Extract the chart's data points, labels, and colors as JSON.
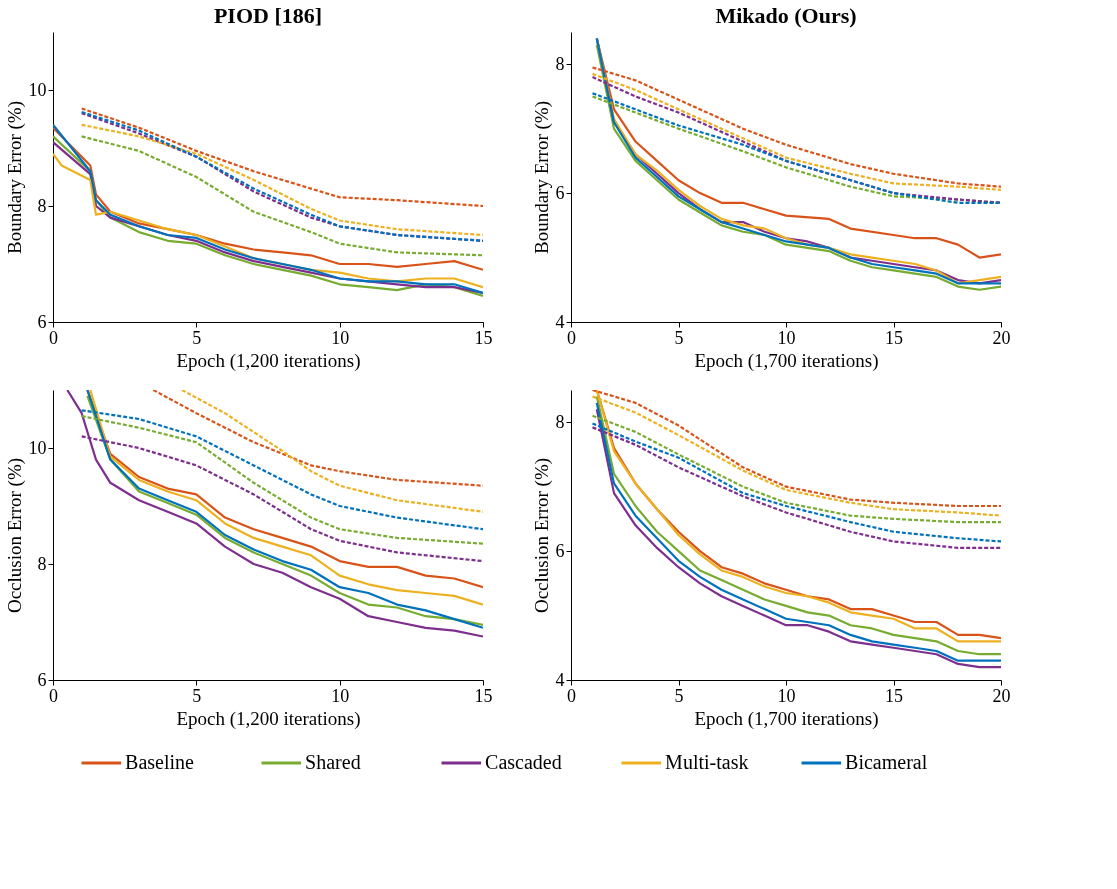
{
  "chart_data": [
    {
      "type": "line",
      "title": "PIOD [186]",
      "xlabel": "Epoch (1,200 iterations)",
      "ylabel": "Boundary Error (%)",
      "xlim": [
        0,
        15
      ],
      "xticks": [
        0,
        5,
        10,
        15
      ],
      "ylim": [
        6,
        11
      ],
      "yticks": [
        6,
        8,
        10
      ],
      "grid": false,
      "legend": "bottom",
      "series": [
        {
          "name": "Baseline",
          "color": "#d95319",
          "line_style": "solid",
          "x": [
            0,
            0.5,
            1.3,
            1.5,
            2,
            3,
            4,
            5,
            6,
            7,
            8,
            9,
            10,
            11,
            12,
            13,
            14,
            15
          ],
          "values": [
            9.35,
            9.1,
            8.7,
            8.2,
            7.9,
            7.7,
            7.6,
            7.5,
            7.35,
            7.25,
            7.2,
            7.15,
            7.0,
            7.0,
            6.95,
            7.0,
            7.05,
            6.9
          ]
        },
        {
          "name": "Shared",
          "color": "#77ac30",
          "line_style": "solid",
          "x": [
            0,
            1.3,
            1.5,
            2,
            3,
            4,
            5,
            6,
            7,
            8,
            9,
            10,
            11,
            12,
            13,
            14,
            15
          ],
          "values": [
            9.2,
            8.6,
            8.1,
            7.8,
            7.55,
            7.4,
            7.35,
            7.15,
            7.0,
            6.9,
            6.8,
            6.65,
            6.6,
            6.55,
            6.65,
            6.6,
            6.45
          ]
        },
        {
          "name": "Cascaded",
          "color": "#7e2f8e",
          "line_style": "solid",
          "x": [
            0,
            1.3,
            1.5,
            2,
            3,
            4,
            5,
            6,
            7,
            8,
            9,
            10,
            11,
            12,
            13,
            14,
            15
          ],
          "values": [
            9.1,
            8.55,
            8.0,
            7.8,
            7.65,
            7.5,
            7.4,
            7.2,
            7.05,
            6.95,
            6.85,
            6.75,
            6.7,
            6.65,
            6.6,
            6.6,
            6.5
          ]
        },
        {
          "name": "Multi-task",
          "color": "#edb120",
          "line_style": "solid",
          "x": [
            0,
            0.3,
            1.3,
            1.5,
            2,
            3,
            4,
            5,
            6,
            7,
            8,
            9,
            10,
            11,
            12,
            13,
            14,
            15
          ],
          "values": [
            8.9,
            8.7,
            8.45,
            7.85,
            7.9,
            7.75,
            7.6,
            7.5,
            7.3,
            7.1,
            7.0,
            6.9,
            6.85,
            6.75,
            6.7,
            6.75,
            6.75,
            6.6
          ]
        },
        {
          "name": "Bicameral",
          "color": "#0072bd",
          "line_style": "solid",
          "x": [
            0,
            1.3,
            1.5,
            2,
            3,
            4,
            5,
            6,
            7,
            8,
            9,
            10,
            11,
            12,
            13,
            14,
            15
          ],
          "values": [
            9.4,
            8.6,
            8.1,
            7.85,
            7.65,
            7.5,
            7.45,
            7.25,
            7.1,
            7.0,
            6.9,
            6.75,
            6.7,
            6.7,
            6.65,
            6.65,
            6.5
          ]
        },
        {
          "color": "#d95319",
          "line_style": "dashed",
          "x": [
            1,
            3,
            5,
            7,
            9,
            10,
            12,
            15
          ],
          "values": [
            9.68,
            9.35,
            8.95,
            8.6,
            8.3,
            8.15,
            8.1,
            8.0
          ]
        },
        {
          "color": "#77ac30",
          "line_style": "dashed",
          "x": [
            1,
            3,
            5,
            7,
            9,
            10,
            12,
            15
          ],
          "values": [
            9.2,
            8.95,
            8.5,
            7.9,
            7.55,
            7.35,
            7.2,
            7.15
          ]
        },
        {
          "color": "#7e2f8e",
          "line_style": "dashed",
          "x": [
            1,
            3,
            5,
            7,
            9,
            10,
            12,
            15
          ],
          "values": [
            9.6,
            9.25,
            8.85,
            8.25,
            7.8,
            7.65,
            7.5,
            7.4
          ]
        },
        {
          "color": "#edb120",
          "line_style": "dashed",
          "x": [
            1,
            3,
            5,
            7,
            9,
            10,
            12,
            15
          ],
          "values": [
            9.4,
            9.2,
            8.9,
            8.45,
            7.95,
            7.75,
            7.6,
            7.5
          ]
        },
        {
          "color": "#0072bd",
          "line_style": "dashed",
          "x": [
            1,
            3,
            5,
            7,
            9,
            10,
            12,
            15
          ],
          "values": [
            9.62,
            9.3,
            8.85,
            8.3,
            7.85,
            7.65,
            7.5,
            7.4
          ]
        }
      ]
    },
    {
      "type": "line",
      "title": "Mikado (Ours)",
      "xlabel": "Epoch (1,700 iterations)",
      "ylabel": "Boundary Error (%)",
      "xlim": [
        0,
        20
      ],
      "xticks": [
        0,
        5,
        10,
        15,
        20
      ],
      "ylim": [
        4,
        8.5
      ],
      "yticks": [
        4,
        6,
        8
      ],
      "grid": false,
      "legend": "bottom",
      "series": [
        {
          "name": "Baseline",
          "color": "#d95319",
          "line_style": "solid",
          "x": [
            1.2,
            2,
            3,
            4,
            5,
            6,
            7,
            8,
            9,
            10,
            12,
            13,
            15,
            16,
            17,
            18,
            19,
            20
          ],
          "values": [
            8.4,
            7.3,
            6.8,
            6.5,
            6.2,
            6.0,
            5.85,
            5.85,
            5.75,
            5.65,
            5.6,
            5.45,
            5.35,
            5.3,
            5.3,
            5.2,
            5.0,
            5.05
          ]
        },
        {
          "name": "Shared",
          "color": "#77ac30",
          "line_style": "solid",
          "x": [
            1.2,
            2,
            3,
            4,
            5,
            6,
            7,
            8,
            9,
            10,
            11,
            12,
            13,
            14,
            15,
            16,
            17,
            18,
            19,
            20
          ],
          "values": [
            8.3,
            7.0,
            6.5,
            6.2,
            5.9,
            5.7,
            5.5,
            5.4,
            5.35,
            5.2,
            5.15,
            5.1,
            4.95,
            4.85,
            4.8,
            4.75,
            4.7,
            4.55,
            4.5,
            4.55
          ]
        },
        {
          "name": "Cascaded",
          "color": "#7e2f8e",
          "line_style": "solid",
          "x": [
            1.2,
            2,
            3,
            4,
            5,
            6,
            7,
            8,
            9,
            10,
            11,
            12,
            13,
            14,
            15,
            16,
            17,
            18,
            19,
            20
          ],
          "values": [
            8.4,
            7.1,
            6.6,
            6.3,
            6.0,
            5.75,
            5.55,
            5.55,
            5.4,
            5.3,
            5.25,
            5.15,
            5.0,
            4.95,
            4.9,
            4.85,
            4.8,
            4.65,
            4.6,
            4.65
          ]
        },
        {
          "name": "Multi-task",
          "color": "#edb120",
          "line_style": "solid",
          "x": [
            1.2,
            2,
            3,
            4,
            5,
            6,
            7,
            8,
            9,
            10,
            11,
            12,
            13,
            14,
            15,
            16,
            17,
            18,
            19,
            20
          ],
          "values": [
            8.4,
            7.15,
            6.6,
            6.35,
            6.05,
            5.8,
            5.6,
            5.5,
            5.45,
            5.3,
            5.2,
            5.15,
            5.05,
            5.0,
            4.95,
            4.9,
            4.8,
            4.6,
            4.65,
            4.7
          ]
        },
        {
          "name": "Bicameral",
          "color": "#0072bd",
          "line_style": "solid",
          "x": [
            1.2,
            2,
            3,
            4,
            5,
            6,
            7,
            8,
            9,
            10,
            11,
            12,
            13,
            14,
            15,
            16,
            17,
            18,
            19,
            20
          ],
          "values": [
            8.4,
            7.1,
            6.55,
            6.25,
            5.95,
            5.75,
            5.55,
            5.45,
            5.35,
            5.25,
            5.2,
            5.15,
            5.0,
            4.9,
            4.85,
            4.8,
            4.75,
            4.6,
            4.6,
            4.6
          ]
        },
        {
          "color": "#d95319",
          "line_style": "dashed",
          "x": [
            1,
            3,
            5,
            8,
            10,
            13,
            15,
            18,
            20
          ],
          "values": [
            7.95,
            7.75,
            7.45,
            7.0,
            6.75,
            6.45,
            6.3,
            6.15,
            6.1
          ]
        },
        {
          "color": "#77ac30",
          "line_style": "dashed",
          "x": [
            1,
            3,
            5,
            8,
            10,
            13,
            15,
            18,
            20
          ],
          "values": [
            7.5,
            7.25,
            7.0,
            6.65,
            6.4,
            6.1,
            5.95,
            5.9,
            5.85
          ]
        },
        {
          "color": "#7e2f8e",
          "line_style": "dashed",
          "x": [
            1,
            3,
            5,
            8,
            10,
            13,
            15,
            18,
            20
          ],
          "values": [
            7.8,
            7.5,
            7.25,
            6.8,
            6.5,
            6.2,
            6.0,
            5.9,
            5.85
          ]
        },
        {
          "color": "#edb120",
          "line_style": "dashed",
          "x": [
            1,
            3,
            5,
            8,
            10,
            13,
            15,
            18,
            20
          ],
          "values": [
            7.85,
            7.6,
            7.3,
            6.85,
            6.55,
            6.3,
            6.15,
            6.1,
            6.05
          ]
        },
        {
          "color": "#0072bd",
          "line_style": "dashed",
          "x": [
            1,
            3,
            5,
            8,
            10,
            13,
            15,
            18,
            20
          ],
          "values": [
            7.55,
            7.3,
            7.05,
            6.75,
            6.5,
            6.2,
            6.0,
            5.85,
            5.85
          ]
        }
      ]
    },
    {
      "type": "line",
      "xlabel": "Epoch (1,200 iterations)",
      "ylabel": "Occlusion Error (%)",
      "xlim": [
        0,
        15
      ],
      "xticks": [
        0,
        5,
        10,
        15
      ],
      "ylim": [
        6,
        11
      ],
      "yticks": [
        6,
        8,
        10
      ],
      "grid": false,
      "legend": "bottom",
      "series": [
        {
          "name": "Baseline",
          "color": "#d95319",
          "line_style": "solid",
          "x": [
            1.2,
            2,
            3,
            4,
            5,
            6,
            7,
            8,
            9,
            10,
            11,
            12,
            13,
            14,
            15
          ],
          "values": [
            11.0,
            9.9,
            9.5,
            9.3,
            9.2,
            8.8,
            8.6,
            8.45,
            8.3,
            8.05,
            7.95,
            7.95,
            7.8,
            7.75,
            7.6
          ]
        },
        {
          "name": "Shared",
          "color": "#77ac30",
          "line_style": "solid",
          "x": [
            1.2,
            2,
            3,
            4,
            5,
            6,
            7,
            8,
            9,
            10,
            11,
            12,
            13,
            14,
            15
          ],
          "values": [
            10.9,
            9.8,
            9.25,
            9.05,
            8.85,
            8.45,
            8.2,
            8.0,
            7.8,
            7.5,
            7.3,
            7.25,
            7.1,
            7.05,
            6.95
          ]
        },
        {
          "name": "Cascaded",
          "color": "#7e2f8e",
          "line_style": "solid",
          "x": [
            0.5,
            1,
            1.5,
            2,
            3,
            4,
            5,
            6,
            7,
            8,
            9,
            10,
            11,
            12,
            13,
            14,
            15
          ],
          "values": [
            11.0,
            10.6,
            9.8,
            9.4,
            9.1,
            8.9,
            8.7,
            8.3,
            8.0,
            7.85,
            7.6,
            7.4,
            7.1,
            7.0,
            6.9,
            6.85,
            6.75
          ]
        },
        {
          "name": "Multi-task",
          "color": "#edb120",
          "line_style": "solid",
          "x": [
            1.3,
            2,
            3,
            4,
            5,
            6,
            7,
            8,
            9,
            10,
            11,
            12,
            13,
            14,
            15
          ],
          "values": [
            11.0,
            9.85,
            9.45,
            9.25,
            9.1,
            8.7,
            8.45,
            8.3,
            8.15,
            7.8,
            7.65,
            7.55,
            7.5,
            7.45,
            7.3
          ]
        },
        {
          "name": "Bicameral",
          "color": "#0072bd",
          "line_style": "solid",
          "x": [
            1.2,
            2,
            3,
            4,
            5,
            6,
            7,
            8,
            9,
            10,
            11,
            12,
            13,
            14,
            15
          ],
          "values": [
            11.0,
            9.8,
            9.3,
            9.1,
            8.9,
            8.5,
            8.25,
            8.05,
            7.9,
            7.6,
            7.5,
            7.3,
            7.2,
            7.05,
            6.9
          ]
        },
        {
          "color": "#d95319",
          "line_style": "dashed",
          "x": [
            3.5,
            5,
            7,
            9,
            10,
            12,
            15
          ],
          "values": [
            11.0,
            10.6,
            10.1,
            9.7,
            9.6,
            9.45,
            9.35
          ]
        },
        {
          "color": "#77ac30",
          "line_style": "dashed",
          "x": [
            1,
            3,
            5,
            7,
            9,
            10,
            12,
            15
          ],
          "values": [
            10.55,
            10.35,
            10.1,
            9.4,
            8.8,
            8.6,
            8.45,
            8.35
          ]
        },
        {
          "color": "#7e2f8e",
          "line_style": "dashed",
          "x": [
            1,
            3,
            5,
            7,
            9,
            10,
            12,
            15
          ],
          "values": [
            10.2,
            10.0,
            9.7,
            9.2,
            8.6,
            8.4,
            8.2,
            8.05
          ]
        },
        {
          "color": "#edb120",
          "line_style": "dashed",
          "x": [
            4.5,
            6,
            8,
            9,
            10,
            12,
            15
          ],
          "values": [
            11.0,
            10.6,
            9.95,
            9.6,
            9.35,
            9.1,
            8.9
          ]
        },
        {
          "color": "#0072bd",
          "line_style": "dashed",
          "x": [
            1,
            3,
            5,
            7,
            9,
            10,
            12,
            15
          ],
          "values": [
            10.65,
            10.5,
            10.2,
            9.7,
            9.2,
            9.0,
            8.8,
            8.6
          ]
        }
      ]
    },
    {
      "type": "line",
      "xlabel": "Epoch (1,700 iterations)",
      "ylabel": "Occlusion Error (%)",
      "xlim": [
        0,
        20
      ],
      "xticks": [
        0,
        5,
        10,
        15,
        20
      ],
      "ylim": [
        4,
        8.5
      ],
      "yticks": [
        4,
        6,
        8
      ],
      "grid": false,
      "legend": "bottom",
      "series": [
        {
          "name": "Baseline",
          "color": "#d95319",
          "line_style": "solid",
          "x": [
            1.2,
            2,
            3,
            4,
            5,
            6,
            7,
            8,
            9,
            10,
            11,
            12,
            13,
            14,
            15,
            16,
            17,
            18,
            19,
            20
          ],
          "values": [
            8.5,
            7.6,
            7.05,
            6.65,
            6.3,
            6.0,
            5.75,
            5.65,
            5.5,
            5.4,
            5.3,
            5.25,
            5.1,
            5.1,
            5.0,
            4.9,
            4.9,
            4.7,
            4.7,
            4.65
          ]
        },
        {
          "name": "Shared",
          "color": "#77ac30",
          "line_style": "solid",
          "x": [
            1.2,
            2,
            3,
            4,
            5,
            6,
            7,
            8,
            9,
            10,
            11,
            12,
            13,
            14,
            15,
            16,
            17,
            18,
            19,
            20
          ],
          "values": [
            8.4,
            7.2,
            6.7,
            6.3,
            6.0,
            5.7,
            5.55,
            5.4,
            5.25,
            5.15,
            5.05,
            5.0,
            4.85,
            4.8,
            4.7,
            4.65,
            4.6,
            4.45,
            4.4,
            4.4
          ]
        },
        {
          "name": "Cascaded",
          "color": "#7e2f8e",
          "line_style": "solid",
          "x": [
            1.2,
            2,
            3,
            4,
            5,
            6,
            7,
            8,
            9,
            10,
            11,
            12,
            13,
            14,
            15,
            16,
            17,
            18,
            19,
            20
          ],
          "values": [
            8.2,
            6.9,
            6.4,
            6.05,
            5.75,
            5.5,
            5.3,
            5.15,
            5.0,
            4.85,
            4.85,
            4.75,
            4.6,
            4.55,
            4.5,
            4.45,
            4.4,
            4.25,
            4.2,
            4.2
          ]
        },
        {
          "name": "Multi-task",
          "color": "#edb120",
          "line_style": "solid",
          "x": [
            1.2,
            2,
            3,
            4,
            5,
            6,
            7,
            8,
            9,
            10,
            11,
            12,
            13,
            14,
            15,
            16,
            17,
            18,
            19,
            20
          ],
          "values": [
            8.5,
            7.55,
            7.05,
            6.65,
            6.25,
            5.95,
            5.7,
            5.6,
            5.45,
            5.35,
            5.3,
            5.2,
            5.05,
            5.0,
            4.95,
            4.8,
            4.8,
            4.6,
            4.6,
            4.6
          ]
        },
        {
          "name": "Bicameral",
          "color": "#0072bd",
          "line_style": "solid",
          "x": [
            1.2,
            2,
            3,
            4,
            5,
            6,
            7,
            8,
            9,
            10,
            11,
            12,
            13,
            14,
            15,
            16,
            17,
            18,
            19,
            20
          ],
          "values": [
            8.3,
            7.05,
            6.55,
            6.2,
            5.85,
            5.6,
            5.4,
            5.25,
            5.1,
            4.95,
            4.9,
            4.85,
            4.7,
            4.6,
            4.55,
            4.5,
            4.45,
            4.3,
            4.3,
            4.3
          ]
        },
        {
          "color": "#d95319",
          "line_style": "dashed",
          "x": [
            1,
            3,
            5,
            8,
            10,
            13,
            15,
            18,
            20
          ],
          "values": [
            8.5,
            8.3,
            7.95,
            7.3,
            7.0,
            6.8,
            6.75,
            6.7,
            6.7
          ]
        },
        {
          "color": "#77ac30",
          "line_style": "dashed",
          "x": [
            1,
            3,
            5,
            8,
            10,
            13,
            15,
            18,
            20
          ],
          "values": [
            8.1,
            7.85,
            7.5,
            7.0,
            6.75,
            6.55,
            6.5,
            6.45,
            6.45
          ]
        },
        {
          "color": "#7e2f8e",
          "line_style": "dashed",
          "x": [
            1,
            3,
            5,
            8,
            10,
            13,
            15,
            18,
            20
          ],
          "values": [
            7.92,
            7.65,
            7.3,
            6.85,
            6.6,
            6.3,
            6.15,
            6.05,
            6.05
          ]
        },
        {
          "color": "#edb120",
          "line_style": "dashed",
          "x": [
            1,
            3,
            5,
            8,
            10,
            13,
            15,
            18,
            20
          ],
          "values": [
            8.4,
            8.15,
            7.8,
            7.25,
            6.95,
            6.75,
            6.65,
            6.6,
            6.55
          ]
        },
        {
          "color": "#0072bd",
          "line_style": "dashed",
          "x": [
            1,
            3,
            5,
            8,
            10,
            13,
            15,
            18,
            20
          ],
          "values": [
            7.98,
            7.7,
            7.45,
            6.9,
            6.7,
            6.45,
            6.3,
            6.2,
            6.15
          ]
        }
      ]
    }
  ]
}
